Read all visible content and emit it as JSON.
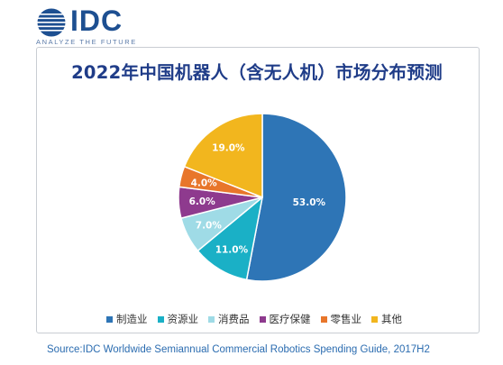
{
  "logo": {
    "text": "IDC",
    "tagline": "ANALYZE THE FUTURE",
    "mark_icon": "globe-icon",
    "color": "#1d4f91"
  },
  "chart_data": {
    "type": "pie",
    "title": "2022年中国机器人（含无人机）市场分布预测",
    "categories": [
      "制造业",
      "资源业",
      "消费品",
      "医疗保健",
      "零售业",
      "其他"
    ],
    "values": [
      53.0,
      11.0,
      7.0,
      6.0,
      4.0,
      19.0
    ],
    "labels": [
      "53.0%",
      "11.0%",
      "7.0%",
      "6.0%",
      "4.0%",
      "19.0%"
    ],
    "colors": [
      "#2e75b6",
      "#1ab0c6",
      "#9fdbe6",
      "#8e3a8e",
      "#e8762b",
      "#f2b61e"
    ],
    "legend_position": "bottom",
    "start": "12 o'clock, clockwise"
  },
  "source": "Source:IDC Worldwide Semiannual Commercial Robotics Spending Guide, 2017H2"
}
